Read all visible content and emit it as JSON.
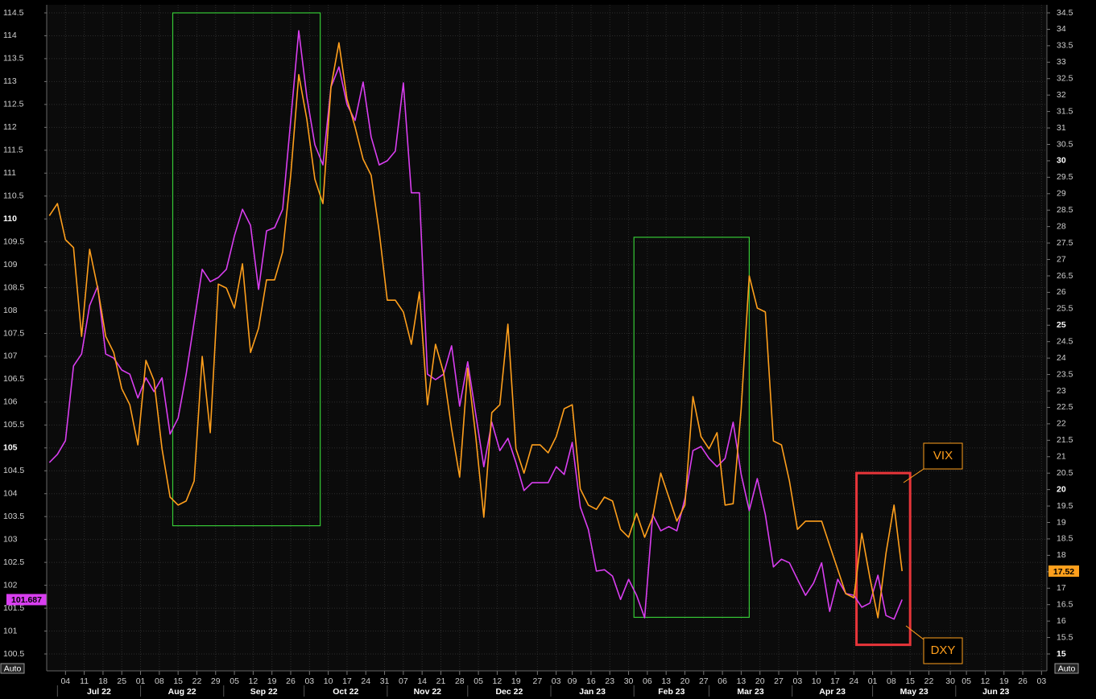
{
  "chart_data": {
    "type": "line",
    "x": [
      "2022-06-28",
      "2022-07-01",
      "2022-07-04",
      "2022-07-07",
      "2022-07-10",
      "2022-07-13",
      "2022-07-16",
      "2022-07-19",
      "2022-07-22",
      "2022-07-25",
      "2022-07-28",
      "2022-07-31",
      "2022-08-03",
      "2022-08-06",
      "2022-08-09",
      "2022-08-12",
      "2022-08-15",
      "2022-08-18",
      "2022-08-21",
      "2022-08-24",
      "2022-08-27",
      "2022-08-30",
      "2022-09-02",
      "2022-09-05",
      "2022-09-08",
      "2022-09-11",
      "2022-09-14",
      "2022-09-17",
      "2022-09-20",
      "2022-09-23",
      "2022-09-26",
      "2022-09-29",
      "2022-10-02",
      "2022-10-05",
      "2022-10-08",
      "2022-10-11",
      "2022-10-14",
      "2022-10-17",
      "2022-10-20",
      "2022-10-23",
      "2022-10-26",
      "2022-10-29",
      "2022-11-01",
      "2022-11-04",
      "2022-11-07",
      "2022-11-10",
      "2022-11-13",
      "2022-11-16",
      "2022-11-19",
      "2022-11-22",
      "2022-11-25",
      "2022-11-28",
      "2022-12-01",
      "2022-12-04",
      "2022-12-07",
      "2022-12-10",
      "2022-12-13",
      "2022-12-16",
      "2022-12-19",
      "2022-12-22",
      "2022-12-25",
      "2022-12-28",
      "2022-12-31",
      "2023-01-03",
      "2023-01-06",
      "2023-01-09",
      "2023-01-12",
      "2023-01-15",
      "2023-01-18",
      "2023-01-21",
      "2023-01-24",
      "2023-01-27",
      "2023-01-30",
      "2023-02-02",
      "2023-02-05",
      "2023-02-08",
      "2023-02-11",
      "2023-02-14",
      "2023-02-17",
      "2023-02-20",
      "2023-02-23",
      "2023-02-26",
      "2023-03-01",
      "2023-03-04",
      "2023-03-07",
      "2023-03-10",
      "2023-03-13",
      "2023-03-16",
      "2023-03-19",
      "2023-03-22",
      "2023-03-25",
      "2023-03-28",
      "2023-03-31",
      "2023-04-03",
      "2023-04-06",
      "2023-04-09",
      "2023-04-12",
      "2023-04-15",
      "2023-04-18",
      "2023-04-21",
      "2023-04-24",
      "2023-04-27",
      "2023-04-30",
      "2023-05-03",
      "2023-05-06",
      "2023-05-09",
      "2023-05-12"
    ],
    "series": [
      {
        "name": "DXY",
        "color": "#d93ef0",
        "last_value": 101.687,
        "values": [
          104.68,
          104.86,
          105.16,
          106.79,
          107.05,
          108.11,
          108.53,
          107.05,
          106.96,
          106.7,
          106.61,
          106.09,
          106.53,
          106.23,
          106.53,
          105.3,
          105.65,
          106.6,
          107.75,
          108.9,
          108.63,
          108.72,
          108.9,
          109.63,
          110.21,
          109.86,
          108.46,
          109.74,
          109.81,
          110.21,
          112.15,
          114.11,
          112.67,
          111.62,
          111.18,
          112.88,
          113.32,
          112.5,
          112.15,
          112.99,
          111.79,
          111.18,
          111.27,
          111.48,
          112.97,
          110.57,
          110.57,
          106.61,
          106.49,
          106.61,
          107.23,
          105.91,
          106.88,
          105.73,
          104.59,
          105.56,
          104.94,
          105.21,
          104.68,
          104.07,
          104.24,
          104.24,
          104.24,
          104.59,
          104.42,
          105.12,
          103.71,
          103.22,
          102.31,
          102.34,
          102.2,
          101.69,
          102.13,
          101.78,
          101.29,
          103.54,
          103.19,
          103.28,
          103.19,
          103.89,
          104.94,
          105.03,
          104.77,
          104.59,
          104.77,
          105.56,
          104.42,
          103.63,
          104.33,
          103.54,
          102.4,
          102.57,
          102.49,
          102.13,
          101.78,
          102.05,
          102.49,
          101.43,
          102.13,
          101.82,
          101.78,
          101.52,
          101.61,
          102.22,
          101.34,
          101.26,
          101.687
        ]
      },
      {
        "name": "VIX",
        "color": "#ff9f1c",
        "axis": "y2",
        "last_value": 17.52,
        "values": [
          28.33,
          28.7,
          27.6,
          27.36,
          24.66,
          27.31,
          26.13,
          24.66,
          24.17,
          23.07,
          22.58,
          21.36,
          23.93,
          23.32,
          21.24,
          19.77,
          19.53,
          19.65,
          20.26,
          24.05,
          21.73,
          26.25,
          26.13,
          25.52,
          26.87,
          24.17,
          24.91,
          26.38,
          26.38,
          27.23,
          29.56,
          32.62,
          31.27,
          29.44,
          28.7,
          32.25,
          33.59,
          31.88,
          31.03,
          30.05,
          29.56,
          27.84,
          25.76,
          25.76,
          25.4,
          24.42,
          26.01,
          22.58,
          24.42,
          23.56,
          21.85,
          20.38,
          23.69,
          21.61,
          19.16,
          22.34,
          22.58,
          25.03,
          21.24,
          20.5,
          21.36,
          21.36,
          21.12,
          21.61,
          22.46,
          22.58,
          20.02,
          19.53,
          19.4,
          19.77,
          19.65,
          18.79,
          18.55,
          19.28,
          18.55,
          19.16,
          20.5,
          19.77,
          19.04,
          19.53,
          22.83,
          21.61,
          21.24,
          21.73,
          19.53,
          19.57,
          22.46,
          26.5,
          25.52,
          25.4,
          21.48,
          21.36,
          20.26,
          18.79,
          19.04,
          19.04,
          19.04,
          18.3,
          17.57,
          16.83,
          16.71,
          18.67,
          17.32,
          16.1,
          18.06,
          19.53,
          17.52
        ]
      }
    ],
    "xlim": [
      "2022-06-27",
      "2023-07-05"
    ],
    "xticks": [
      {
        "value": "2022-07-04",
        "label": "04"
      },
      {
        "value": "2022-07-11",
        "label": "11"
      },
      {
        "value": "2022-07-18",
        "label": "18"
      },
      {
        "value": "2022-07-25",
        "label": "25"
      },
      {
        "value": "2022-08-01",
        "label": "01"
      },
      {
        "value": "2022-08-08",
        "label": "08"
      },
      {
        "value": "2022-08-15",
        "label": "15"
      },
      {
        "value": "2022-08-22",
        "label": "22"
      },
      {
        "value": "2022-08-29",
        "label": "29"
      },
      {
        "value": "2022-09-05",
        "label": "05"
      },
      {
        "value": "2022-09-12",
        "label": "12"
      },
      {
        "value": "2022-09-19",
        "label": "19"
      },
      {
        "value": "2022-09-26",
        "label": "26"
      },
      {
        "value": "2022-10-03",
        "label": "03"
      },
      {
        "value": "2022-10-10",
        "label": "10"
      },
      {
        "value": "2022-10-17",
        "label": "17"
      },
      {
        "value": "2022-10-24",
        "label": "24"
      },
      {
        "value": "2022-10-31",
        "label": "31"
      },
      {
        "value": "2022-11-07",
        "label": "07"
      },
      {
        "value": "2022-11-14",
        "label": "14"
      },
      {
        "value": "2022-11-21",
        "label": "21"
      },
      {
        "value": "2022-11-28",
        "label": "28"
      },
      {
        "value": "2022-12-05",
        "label": "05"
      },
      {
        "value": "2022-12-12",
        "label": "12"
      },
      {
        "value": "2022-12-19",
        "label": "19"
      },
      {
        "value": "2022-12-27",
        "label": "27"
      },
      {
        "value": "2023-01-03",
        "label": "03"
      },
      {
        "value": "2023-01-09",
        "label": "09"
      },
      {
        "value": "2023-01-16",
        "label": "16"
      },
      {
        "value": "2023-01-23",
        "label": "23"
      },
      {
        "value": "2023-01-30",
        "label": "30"
      },
      {
        "value": "2023-02-06",
        "label": "06"
      },
      {
        "value": "2023-02-13",
        "label": "13"
      },
      {
        "value": "2023-02-20",
        "label": "20"
      },
      {
        "value": "2023-02-27",
        "label": "27"
      },
      {
        "value": "2023-03-06",
        "label": "06"
      },
      {
        "value": "2023-03-13",
        "label": "13"
      },
      {
        "value": "2023-03-20",
        "label": "20"
      },
      {
        "value": "2023-03-27",
        "label": "27"
      },
      {
        "value": "2023-04-03",
        "label": "03"
      },
      {
        "value": "2023-04-10",
        "label": "10"
      },
      {
        "value": "2023-04-17",
        "label": "17"
      },
      {
        "value": "2023-04-24",
        "label": "24"
      },
      {
        "value": "2023-05-01",
        "label": "01"
      },
      {
        "value": "2023-05-08",
        "label": "08"
      },
      {
        "value": "2023-05-15",
        "label": "15"
      },
      {
        "value": "2023-05-22",
        "label": "22"
      },
      {
        "value": "2023-05-30",
        "label": "30"
      },
      {
        "value": "2023-06-05",
        "label": "05"
      },
      {
        "value": "2023-06-12",
        "label": "12"
      },
      {
        "value": "2023-06-19",
        "label": "19"
      },
      {
        "value": "2023-06-26",
        "label": "26"
      },
      {
        "value": "2023-07-03",
        "label": "03"
      }
    ],
    "month_ticks": [
      {
        "value": "2022-07-01",
        "label": "Jul 22"
      },
      {
        "value": "2022-08-01",
        "label": "Aug 22"
      },
      {
        "value": "2022-09-01",
        "label": "Sep 22"
      },
      {
        "value": "2022-10-01",
        "label": "Oct 22"
      },
      {
        "value": "2022-11-01",
        "label": "Nov 22"
      },
      {
        "value": "2022-12-01",
        "label": "Dec 22"
      },
      {
        "value": "2023-01-01",
        "label": "Jan 23"
      },
      {
        "value": "2023-02-01",
        "label": "Feb 23"
      },
      {
        "value": "2023-03-01",
        "label": "Mar 23"
      },
      {
        "value": "2023-04-01",
        "label": "Apr 23"
      },
      {
        "value": "2023-05-01",
        "label": "May 23"
      },
      {
        "value": "2023-06-01",
        "label": "Jun 23"
      }
    ],
    "ylim": [
      100.5,
      114.5
    ],
    "yticks": [
      100.5,
      101,
      101.5,
      102,
      102.5,
      103,
      103.5,
      104,
      104.5,
      105,
      105.5,
      106,
      106.5,
      107,
      107.5,
      108,
      108.5,
      109,
      109.5,
      110,
      110.5,
      111,
      111.5,
      112,
      112.5,
      113,
      113.5,
      114,
      114.5
    ],
    "y2lim": [
      15,
      34.5
    ],
    "y2ticks": [
      15,
      15.5,
      16,
      16.5,
      17,
      17.5,
      18,
      18.5,
      19,
      19.5,
      20,
      20.5,
      21,
      21.5,
      22,
      22.5,
      23,
      23.5,
      24,
      24.5,
      25,
      25.5,
      26,
      26.5,
      27,
      27.5,
      28,
      28.5,
      29,
      29.5,
      30,
      30.5,
      31,
      31.5,
      32,
      32.5,
      33,
      33.5,
      34,
      34.5
    ],
    "grid": true,
    "y_mode_label": "Auto",
    "y2_mode_label": "Auto",
    "highlights": [
      {
        "x": [
          "2022-08-13",
          "2022-10-07"
        ],
        "y": [
          103.3,
          114.5
        ],
        "color": "#36c936"
      },
      {
        "x": [
          "2023-02-01",
          "2023-03-16"
        ],
        "y": [
          101.3,
          109.6
        ],
        "color": "#36c936"
      },
      {
        "x": [
          "2023-04-25",
          "2023-05-15"
        ],
        "y": [
          100.7,
          104.45
        ],
        "color": "#e8353a"
      }
    ],
    "annotations": [
      {
        "text": "VIX",
        "color": "#ff9f1c"
      },
      {
        "text": "DXY",
        "color": "#ff9f1c"
      }
    ]
  }
}
